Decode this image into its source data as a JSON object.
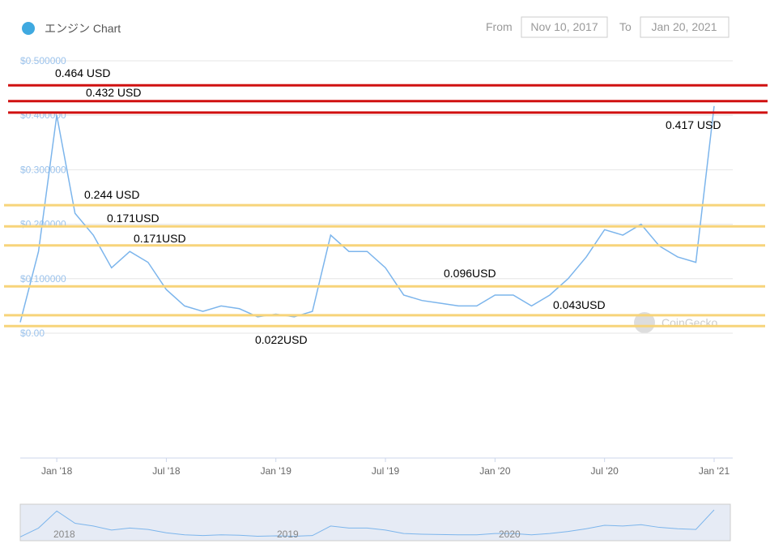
{
  "header": {
    "title": "エンジン Chart",
    "from_label": "From",
    "from": "Nov 10, 2017",
    "to_label": "To",
    "to": "Jan 20, 2021"
  },
  "watermark": "CoinGecko",
  "chart_data": {
    "type": "line",
    "x": [
      "2017-11",
      "2017-12",
      "2018-01",
      "2018-02",
      "2018-03",
      "2018-04",
      "2018-05",
      "2018-06",
      "2018-07",
      "2018-08",
      "2018-09",
      "2018-10",
      "2018-11",
      "2018-12",
      "2019-01",
      "2019-02",
      "2019-03",
      "2019-04",
      "2019-05",
      "2019-06",
      "2019-07",
      "2019-08",
      "2019-09",
      "2019-10",
      "2019-11",
      "2019-12",
      "2020-01",
      "2020-02",
      "2020-03",
      "2020-04",
      "2020-05",
      "2020-06",
      "2020-07",
      "2020-08",
      "2020-09",
      "2020-10",
      "2020-11",
      "2020-12",
      "2021-01"
    ],
    "series": [
      {
        "name": "エンジン",
        "color": "#7cb5ec",
        "values": [
          0.02,
          0.15,
          0.4,
          0.22,
          0.18,
          0.12,
          0.15,
          0.13,
          0.08,
          0.05,
          0.04,
          0.05,
          0.045,
          0.03,
          0.035,
          0.03,
          0.04,
          0.18,
          0.15,
          0.15,
          0.12,
          0.07,
          0.06,
          0.055,
          0.05,
          0.05,
          0.07,
          0.07,
          0.05,
          0.07,
          0.1,
          0.14,
          0.19,
          0.18,
          0.2,
          0.16,
          0.14,
          0.13,
          0.417
        ]
      }
    ],
    "xlim": [
      "2017-11",
      "2021-01"
    ],
    "xticks": [
      {
        "value": "2018-01",
        "label": "Jan '18"
      },
      {
        "value": "2018-07",
        "label": "Jul '18"
      },
      {
        "value": "2019-01",
        "label": "Jan '19"
      },
      {
        "value": "2019-07",
        "label": "Jul '19"
      },
      {
        "value": "2020-01",
        "label": "Jan '20"
      },
      {
        "value": "2020-07",
        "label": "Jul '20"
      },
      {
        "value": "2021-01",
        "label": "Jan '21"
      }
    ],
    "ylim": [
      0,
      0.5
    ],
    "yticks": [
      {
        "value": 0,
        "label": "$0.00"
      },
      {
        "value": 0.1,
        "label": "$0.100000"
      },
      {
        "value": 0.2,
        "label": "$0.200000"
      },
      {
        "value": 0.3,
        "label": "$0.300000"
      },
      {
        "value": 0.4,
        "label": "$0.400000"
      },
      {
        "value": 0.5,
        "label": "$0.500000"
      }
    ],
    "grid": true,
    "red_lines": [
      0.455,
      0.426,
      0.405
    ],
    "yellow_lines": [
      0.235,
      0.196,
      0.161,
      0.086,
      0.033,
      0.013
    ],
    "annotations": [
      "0.464 USD",
      "0.432 USD",
      "0.417 USD",
      "0.244 USD",
      "0.171USD",
      "0.171USD",
      "0.096USD",
      "0.043USD",
      "0.022USD"
    ],
    "navigator_labels": [
      "2018",
      "2019",
      "2020"
    ]
  }
}
